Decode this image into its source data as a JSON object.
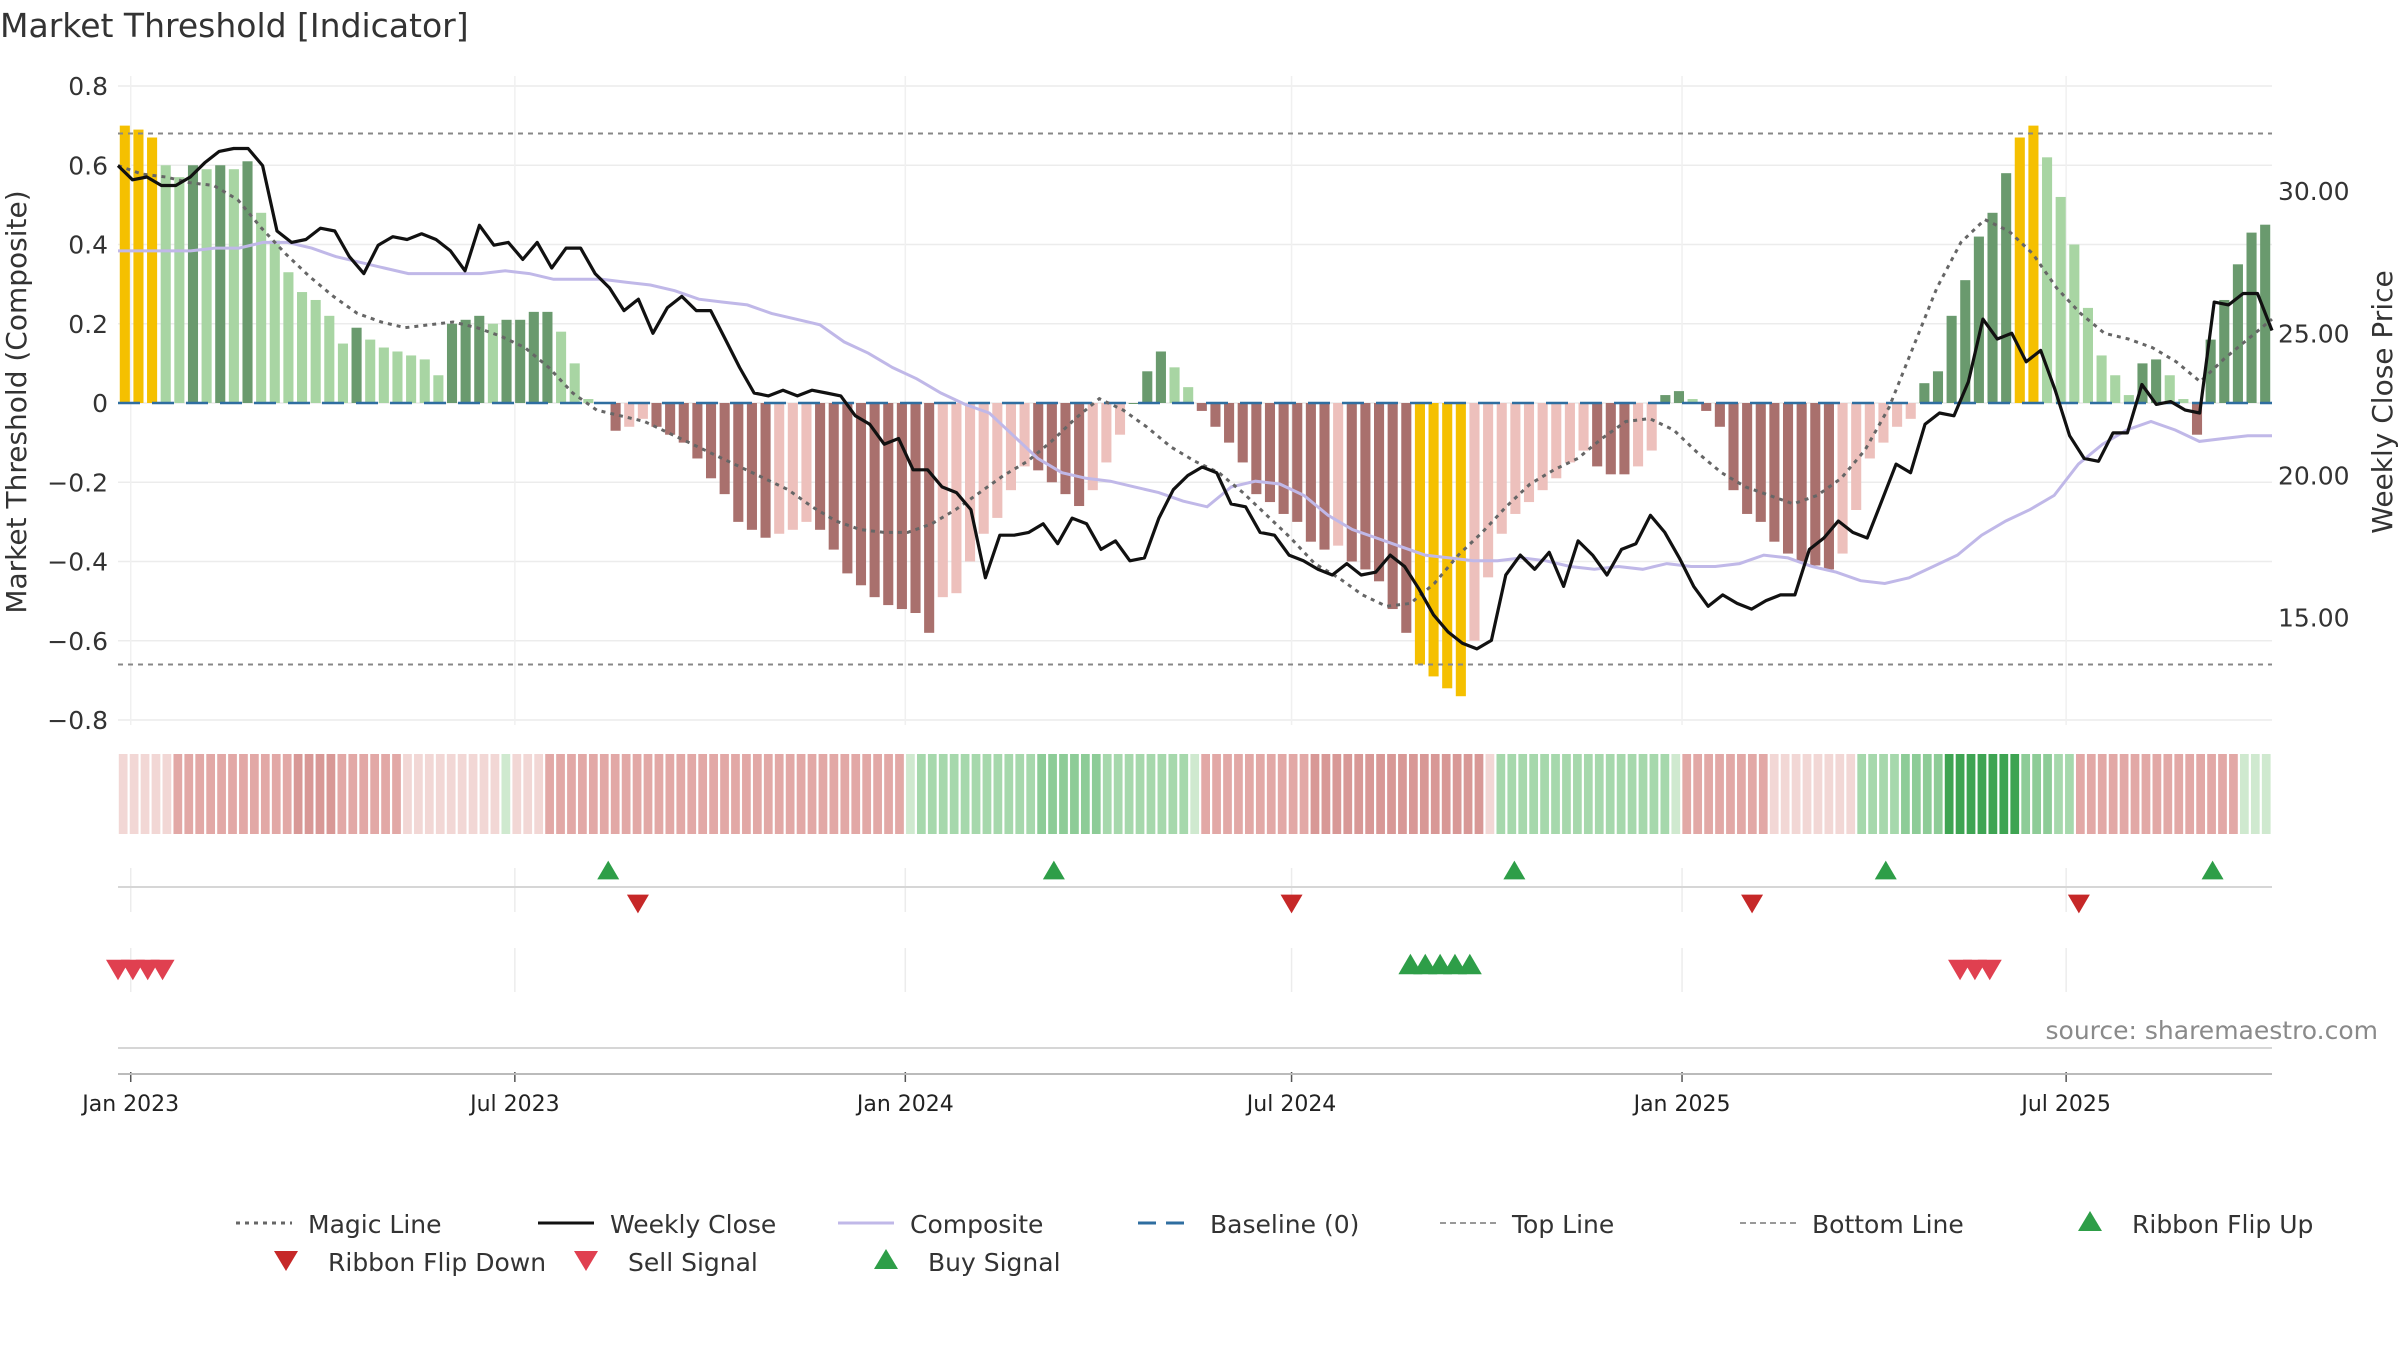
{
  "chart_data": {
    "type": "bar",
    "title": "Market Threshold [Indicator]",
    "ylabel_left": "Market Threshold (Composite)",
    "ylabel_right": "Weekly Close Price",
    "source": "source: sharemaestro.com",
    "ylim_left": [
      -0.8,
      0.8
    ],
    "ylim_right": [
      11.4,
      33.7
    ],
    "x_range": [
      "2022-12-26",
      "2025-10-06"
    ],
    "grid": true,
    "left_ticks": [
      {
        "v": 0.8,
        "t": "0.8"
      },
      {
        "v": 0.6,
        "t": "0.6"
      },
      {
        "v": 0.4,
        "t": "0.4"
      },
      {
        "v": 0.2,
        "t": "0.2"
      },
      {
        "v": 0,
        "t": "0"
      },
      {
        "v": -0.2,
        "t": "−0.2"
      },
      {
        "v": -0.4,
        "t": "−0.4"
      },
      {
        "v": -0.6,
        "t": "−0.6"
      },
      {
        "v": -0.8,
        "t": "−0.8"
      }
    ],
    "right_ticks": [
      {
        "v": 30,
        "t": "30.00"
      },
      {
        "v": 25,
        "t": "25.00"
      },
      {
        "v": 20,
        "t": "20.00"
      },
      {
        "v": 15,
        "t": "15.00"
      }
    ],
    "x_ticks": [
      {
        "d": "2023-01-01",
        "t": "Jan 2023"
      },
      {
        "d": "2023-07-01",
        "t": "Jul 2023"
      },
      {
        "d": "2024-01-01",
        "t": "Jan 2024"
      },
      {
        "d": "2024-07-01",
        "t": "Jul 2024"
      },
      {
        "d": "2025-01-01",
        "t": "Jan 2025"
      },
      {
        "d": "2025-07-01",
        "t": "Jul 2025"
      }
    ],
    "top_line": 0.68,
    "bottom_line": -0.66,
    "baseline": 0,
    "colors": {
      "extreme": "#f5c000",
      "pos_strong": "#6a9a6e",
      "pos_weak": "#a8d5a3",
      "neg_strong": "#a9706d",
      "neg_weak": "#edc0bc",
      "close": "#111111",
      "composite": "#c0b8e8",
      "magic": "#666666",
      "baseline": "#2f6ea0",
      "up": "#2e9e48",
      "down": "#d03a3a"
    },
    "composite_values": [
      0.7,
      0.69,
      0.67,
      0.6,
      0.57,
      0.6,
      0.59,
      0.6,
      0.59,
      0.61,
      0.48,
      0.41,
      0.33,
      0.28,
      0.26,
      0.22,
      0.15,
      0.19,
      0.16,
      0.14,
      0.13,
      0.12,
      0.11,
      0.07,
      0.2,
      0.21,
      0.22,
      0.2,
      0.21,
      0.21,
      0.23,
      0.23,
      0.18,
      0.1,
      0.01,
      0,
      -0.07,
      -0.06,
      -0.04,
      -0.06,
      -0.08,
      -0.1,
      -0.14,
      -0.19,
      -0.23,
      -0.3,
      -0.32,
      -0.34,
      -0.33,
      -0.32,
      -0.3,
      -0.32,
      -0.37,
      -0.43,
      -0.46,
      -0.49,
      -0.51,
      -0.52,
      -0.53,
      -0.58,
      -0.49,
      -0.48,
      -0.4,
      -0.33,
      -0.29,
      -0.22,
      -0.16,
      -0.17,
      -0.2,
      -0.23,
      -0.26,
      -0.22,
      -0.15,
      -0.08,
      0,
      0.08,
      0.13,
      0.09,
      0.04,
      -0.02,
      -0.06,
      -0.1,
      -0.15,
      -0.23,
      -0.25,
      -0.28,
      -0.3,
      -0.35,
      -0.37,
      -0.36,
      -0.4,
      -0.42,
      -0.45,
      -0.52,
      -0.58,
      -0.66,
      -0.69,
      -0.72,
      -0.74,
      -0.6,
      -0.44,
      -0.33,
      -0.28,
      -0.25,
      -0.22,
      -0.19,
      -0.15,
      -0.12,
      -0.16,
      -0.18,
      -0.18,
      -0.16,
      -0.12,
      0.02,
      0.03,
      0.01,
      -0.02,
      -0.06,
      -0.22,
      -0.28,
      -0.3,
      -0.35,
      -0.38,
      -0.4,
      -0.41,
      -0.42,
      -0.38,
      -0.27,
      -0.14,
      -0.1,
      -0.06,
      -0.04,
      0.05,
      0.08,
      0.22,
      0.31,
      0.42,
      0.48,
      0.58,
      0.67,
      0.7,
      0.62,
      0.52,
      0.4,
      0.24,
      0.12,
      0.07,
      0.02,
      0.1,
      0.11,
      0.07,
      0.01,
      -0.08,
      0.16,
      0.26,
      0.35,
      0.43,
      0.45
    ],
    "close_values": [
      30.9,
      30.4,
      30.5,
      30.2,
      30.2,
      30.5,
      31.0,
      31.4,
      31.5,
      31.5,
      30.9,
      28.6,
      28.2,
      28.3,
      28.7,
      28.6,
      27.7,
      27.1,
      28.1,
      28.4,
      28.3,
      28.5,
      28.3,
      27.9,
      27.2,
      28.8,
      28.1,
      28.2,
      27.6,
      28.2,
      27.3,
      28.0,
      28.0,
      27.1,
      26.6,
      25.8,
      26.2,
      25.0,
      25.9,
      26.3,
      25.8,
      25.8,
      24.8,
      23.8,
      22.9,
      22.8,
      23.0,
      22.8,
      23.0,
      22.9,
      22.8,
      22.1,
      21.8,
      21.1,
      21.3,
      20.2,
      20.2,
      19.6,
      19.4,
      18.8,
      16.4,
      17.9,
      17.9,
      18.0,
      18.3,
      17.6,
      18.5,
      18.3,
      17.4,
      17.7,
      17.0,
      17.1,
      18.5,
      19.5,
      20.0,
      20.3,
      20.1,
      19.0,
      18.9,
      18.0,
      17.9,
      17.2,
      17.0,
      16.7,
      16.5,
      16.9,
      16.5,
      16.6,
      17.2,
      16.8,
      16.0,
      15.1,
      14.5,
      14.1,
      13.9,
      14.2,
      16.5,
      17.2,
      16.7,
      17.3,
      16.1,
      17.7,
      17.2,
      16.5,
      17.4,
      17.6,
      18.6,
      18.0,
      17.1,
      16.1,
      15.4,
      15.8,
      15.5,
      15.3,
      15.6,
      15.8,
      15.8,
      17.4,
      17.8,
      18.4,
      18.0,
      17.8,
      19.1,
      20.4,
      20.1,
      21.8,
      22.2,
      22.1,
      23.3,
      25.5,
      24.8,
      25.0,
      24.0,
      24.4,
      23.0,
      21.4,
      20.6,
      20.5,
      21.5,
      21.5,
      23.2,
      22.5,
      22.6,
      22.3,
      22.2,
      26.1,
      26.0,
      26.4,
      26.4,
      25.1
    ],
    "composite_line": [
      27.9,
      27.9,
      27.9,
      27.9,
      28.0,
      28.0,
      28.2,
      28.2,
      28.0,
      27.7,
      27.5,
      27.3,
      27.1,
      27.1,
      27.1,
      27.1,
      27.2,
      27.1,
      26.9,
      26.9,
      26.9,
      26.8,
      26.7,
      26.5,
      26.2,
      26.1,
      26.0,
      25.7,
      25.5,
      25.3,
      24.7,
      24.3,
      23.8,
      23.4,
      22.9,
      22.5,
      22.2,
      21.4,
      20.6,
      20.1,
      19.9,
      19.8,
      19.6,
      19.4,
      19.1,
      18.9,
      19.6,
      19.8,
      19.7,
      19.3,
      18.6,
      18.1,
      17.8,
      17.5,
      17.2,
      17.1,
      17.0,
      17.0,
      17.1,
      17.0,
      16.8,
      16.7,
      16.8,
      16.7,
      16.9,
      16.8,
      16.8,
      16.9,
      17.2,
      17.1,
      16.8,
      16.6,
      16.3,
      16.2,
      16.4,
      16.8,
      17.2,
      17.9,
      18.4,
      18.8,
      19.3,
      20.4,
      21.1,
      21.6,
      21.9,
      21.6,
      21.2,
      21.3,
      21.4,
      21.4
    ],
    "magic_line": [
      30.9,
      30.6,
      30.5,
      30.3,
      30.2,
      29.7,
      28.7,
      27.8,
      27.0,
      26.3,
      25.7,
      25.4,
      25.2,
      25.3,
      25.4,
      25.2,
      24.9,
      24.5,
      23.8,
      22.9,
      22.3,
      22.1,
      21.9,
      21.5,
      21.1,
      20.7,
      20.3,
      19.9,
      19.5,
      18.9,
      18.4,
      18.1,
      18.0,
      18.0,
      18.3,
      18.8,
      19.4,
      20.0,
      20.5,
      21.2,
      22.0,
      22.7,
      22.3,
      21.7,
      21.0,
      20.5,
      20.1,
      19.4,
      18.6,
      17.8,
      16.9,
      16.4,
      15.8,
      15.4,
      15.5,
      16.2,
      17.2,
      18.0,
      18.9,
      19.7,
      20.2,
      20.6,
      21.3,
      21.9,
      22.0,
      21.6,
      20.8,
      20.1,
      19.6,
      19.3,
      19.0,
      19.3,
      19.9,
      20.9,
      22.4,
      24.5,
      26.6,
      28.2,
      29.0,
      28.6,
      27.8,
      26.6,
      25.7,
      25.0,
      24.8,
      24.5,
      24.0,
      23.3,
      24.1,
      24.8,
      25.5
    ],
    "ribbon_values": [
      -1,
      -1,
      -1,
      -1,
      -1,
      -2,
      -2,
      -2,
      -2,
      -2,
      -2,
      -2,
      -2,
      -2,
      -2,
      -2,
      -3,
      -3,
      -3,
      -3,
      -2,
      -2,
      -2,
      -2,
      -2,
      -2,
      -1,
      -1,
      -1,
      -1,
      -1,
      -1,
      -1,
      -1,
      -1,
      1,
      -1,
      -1,
      -1,
      -2,
      -2,
      -2,
      -2,
      -2,
      -2,
      -2,
      -2,
      -2,
      -2,
      -2,
      -2,
      -2,
      -2,
      -2,
      -2,
      -2,
      -2,
      -2,
      -2,
      -2,
      -2,
      -2,
      -2,
      -2,
      -2,
      -2,
      -2,
      -2,
      -2,
      -2,
      -2,
      -2,
      1,
      2,
      2,
      2,
      2,
      2,
      2,
      2,
      2,
      2,
      2,
      2,
      3,
      3,
      3,
      3,
      3,
      3,
      2,
      2,
      2,
      2,
      2,
      2,
      2,
      2,
      1,
      -2,
      -2,
      -2,
      -2,
      -2,
      -2,
      -2,
      -2,
      -2,
      -2,
      -3,
      -3,
      -3,
      -3,
      -3,
      -3,
      -3,
      -3,
      -3,
      -3,
      -3,
      -3,
      -3,
      -3,
      -3,
      -3,
      -1,
      2,
      2,
      2,
      2,
      2,
      2,
      2,
      2,
      2,
      2,
      2,
      2,
      2,
      2,
      2,
      2,
      1,
      -2,
      -2,
      -2,
      -2,
      -2,
      -2,
      -2,
      -2,
      -1,
      -1,
      -1,
      -1,
      -1,
      -1,
      -1,
      -1,
      2,
      2,
      2,
      2,
      3,
      3,
      3,
      3,
      4,
      4,
      4,
      4,
      4,
      4,
      4,
      3,
      3,
      3,
      2,
      2,
      -2,
      -2,
      -2,
      -2,
      -2,
      -2,
      -2,
      -2,
      -2,
      -2,
      -2,
      -2,
      -2,
      -2,
      -2,
      1,
      1,
      1
    ],
    "ribbon_flip_up": [
      "2023-08-14",
      "2024-03-11",
      "2024-10-14",
      "2025-04-07",
      "2025-09-08"
    ],
    "ribbon_flip_down": [
      "2023-08-28",
      "2024-07-01",
      "2025-02-03",
      "2025-07-07"
    ],
    "sell_signals": [
      "2022-12-26",
      "2023-01-02",
      "2023-01-09",
      "2023-01-16",
      "2025-05-12",
      "2025-05-19",
      "2025-05-26"
    ],
    "buy_signals": [
      "2024-08-26",
      "2024-09-02",
      "2024-09-09",
      "2024-09-16",
      "2024-09-23"
    ],
    "legend": [
      {
        "label": "Magic Line",
        "kind": "dotted-line",
        "color": "#666666"
      },
      {
        "label": "Weekly Close",
        "kind": "solid-line",
        "color": "#111111"
      },
      {
        "label": "Composite",
        "kind": "solid-line",
        "color": "#c0b8e8"
      },
      {
        "label": "Baseline (0)",
        "kind": "dashed-line",
        "color": "#2f6ea0"
      },
      {
        "label": "Top Line",
        "kind": "fine-dashed",
        "color": "#999999"
      },
      {
        "label": "Bottom Line",
        "kind": "fine-dashed",
        "color": "#999999"
      },
      {
        "label": "Ribbon Flip Up",
        "kind": "tri-up",
        "color": "#2e9e48"
      },
      {
        "label": "Ribbon Flip Down",
        "kind": "tri-down",
        "color": "#c62828"
      },
      {
        "label": "Sell Signal",
        "kind": "tri-down",
        "color": "#e04050"
      },
      {
        "label": "Buy Signal",
        "kind": "tri-up",
        "color": "#2e9e48"
      }
    ]
  }
}
